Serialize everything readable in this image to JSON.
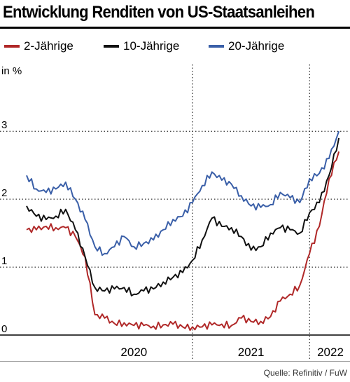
{
  "title": "Entwicklung Renditen von US-Staatsanleihen",
  "source": "Quelle: Refinitiv / FuW",
  "colors": {
    "red": "#b02828",
    "black": "#111111",
    "blue": "#3a5fa8"
  },
  "chart_data": {
    "type": "line",
    "ylabel": "in %",
    "ylim": [
      0,
      3.9
    ],
    "y_ticks": [
      0,
      1,
      2,
      3
    ],
    "x_tick_labels": [
      "2020",
      "2021",
      "2022"
    ],
    "grid": "horizontal dotted at y ticks, vertical dotted at year boundaries",
    "legend_position": "top",
    "x_range": [
      "2019-08",
      "2022-05"
    ],
    "series": [
      {
        "name": "2-Jährige",
        "color": "#b02828",
        "x": [
          "2019-08",
          "2019-09",
          "2019-10",
          "2019-11",
          "2019-12",
          "2020-01",
          "2020-02",
          "2020-03",
          "2020-04",
          "2020-05",
          "2020-06",
          "2020-07",
          "2020-08",
          "2020-09",
          "2020-10",
          "2020-11",
          "2020-12",
          "2021-01",
          "2021-02",
          "2021-03",
          "2021-04",
          "2021-05",
          "2021-06",
          "2021-07",
          "2021-08",
          "2021-09",
          "2021-10",
          "2021-11",
          "2021-12",
          "2022-01",
          "2022-02",
          "2022-03",
          "2022-04"
        ],
        "values": [
          1.55,
          1.55,
          1.6,
          1.58,
          1.58,
          1.45,
          1.15,
          0.3,
          0.25,
          0.17,
          0.18,
          0.14,
          0.14,
          0.13,
          0.15,
          0.16,
          0.12,
          0.12,
          0.12,
          0.15,
          0.16,
          0.14,
          0.25,
          0.2,
          0.2,
          0.27,
          0.5,
          0.6,
          0.73,
          1.2,
          1.6,
          2.3,
          2.7
        ]
      },
      {
        "name": "10-Jährige",
        "color": "#111111",
        "x": [
          "2019-08",
          "2019-09",
          "2019-10",
          "2019-11",
          "2019-12",
          "2020-01",
          "2020-02",
          "2020-03",
          "2020-04",
          "2020-05",
          "2020-06",
          "2020-07",
          "2020-08",
          "2020-09",
          "2020-10",
          "2020-11",
          "2020-12",
          "2021-01",
          "2021-02",
          "2021-03",
          "2021-04",
          "2021-05",
          "2021-06",
          "2021-07",
          "2021-08",
          "2021-09",
          "2021-10",
          "2021-11",
          "2021-12",
          "2022-01",
          "2022-02",
          "2022-03",
          "2022-04"
        ],
        "values": [
          1.9,
          1.75,
          1.7,
          1.75,
          1.85,
          1.55,
          1.15,
          0.7,
          0.65,
          0.68,
          0.7,
          0.6,
          0.65,
          0.68,
          0.78,
          0.85,
          0.92,
          1.1,
          1.4,
          1.72,
          1.6,
          1.58,
          1.45,
          1.25,
          1.3,
          1.5,
          1.58,
          1.55,
          1.5,
          1.8,
          1.95,
          2.35,
          2.9
        ]
      },
      {
        "name": "20-Jährige",
        "color": "#3a5fa8",
        "x": [
          "2019-08",
          "2019-09",
          "2019-10",
          "2019-11",
          "2019-12",
          "2020-01",
          "2020-02",
          "2020-03",
          "2020-04",
          "2020-05",
          "2020-06",
          "2020-07",
          "2020-08",
          "2020-09",
          "2020-10",
          "2020-11",
          "2020-12",
          "2021-01",
          "2021-02",
          "2021-03",
          "2021-04",
          "2021-05",
          "2021-06",
          "2021-07",
          "2021-08",
          "2021-09",
          "2021-10",
          "2021-11",
          "2021-12",
          "2022-01",
          "2022-02",
          "2022-03",
          "2022-04"
        ],
        "values": [
          2.35,
          2.15,
          2.1,
          2.15,
          2.25,
          2.0,
          1.7,
          1.3,
          1.2,
          1.3,
          1.45,
          1.3,
          1.35,
          1.4,
          1.55,
          1.7,
          1.75,
          1.95,
          2.2,
          2.4,
          2.28,
          2.22,
          2.05,
          1.9,
          1.88,
          1.92,
          2.1,
          2.02,
          1.95,
          2.3,
          2.38,
          2.6,
          3.0
        ]
      }
    ]
  }
}
